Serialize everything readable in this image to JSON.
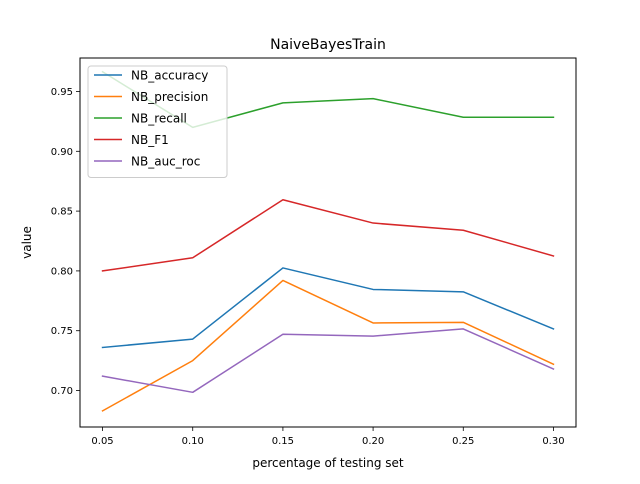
{
  "chart_data": {
    "type": "line",
    "title": "NaiveBayesTrain",
    "xlabel": "percentage of testing set",
    "ylabel": "value",
    "x": [
      0.05,
      0.1,
      0.15,
      0.2,
      0.25,
      0.3
    ],
    "x_tick_labels": [
      "0.05",
      "0.10",
      "0.15",
      "0.20",
      "0.25",
      "0.30"
    ],
    "y_ticks": [
      0.7,
      0.75,
      0.8,
      0.85,
      0.9,
      0.95
    ],
    "y_tick_labels": [
      "0.70",
      "0.75",
      "0.80",
      "0.85",
      "0.90",
      "0.95"
    ],
    "xlim": [
      0.0375,
      0.3125
    ],
    "ylim": [
      0.6695,
      0.978
    ],
    "grid": false,
    "legend_position": "top-left",
    "series": [
      {
        "name": "NB_accuracy",
        "color": "#1f77b4",
        "values": [
          0.736,
          0.743,
          0.8025,
          0.7845,
          0.7825,
          0.7515
        ]
      },
      {
        "name": "NB_precision",
        "color": "#ff7f0e",
        "values": [
          0.683,
          0.725,
          0.792,
          0.7565,
          0.757,
          0.722
        ]
      },
      {
        "name": "NB_recall",
        "color": "#2ca02c",
        "values": [
          0.9665,
          0.92,
          0.9405,
          0.944,
          0.9285,
          0.9285
        ]
      },
      {
        "name": "NB_F1",
        "color": "#d62728",
        "values": [
          0.8,
          0.811,
          0.8595,
          0.84,
          0.834,
          0.8125
        ]
      },
      {
        "name": "NB_auc_roc",
        "color": "#9467bd",
        "values": [
          0.712,
          0.6985,
          0.747,
          0.7455,
          0.7515,
          0.718
        ]
      }
    ]
  }
}
